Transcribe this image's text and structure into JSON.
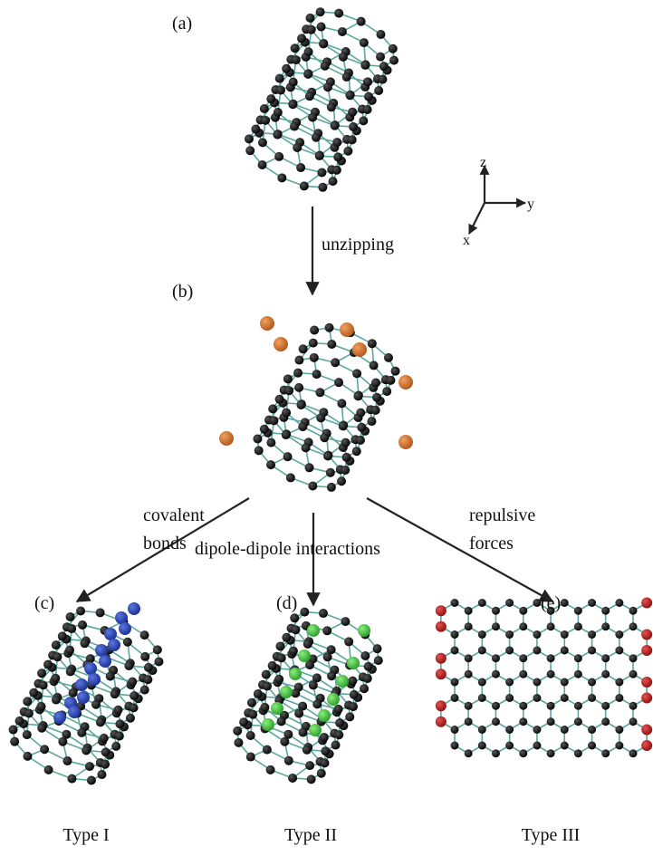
{
  "panels": [
    {
      "label": "(a)"
    },
    {
      "label": "(b)"
    },
    {
      "label": "(c)",
      "caption": "Type I"
    },
    {
      "label": "(d)",
      "caption": "Type II"
    },
    {
      "label": "(e)",
      "caption": "Type III"
    }
  ],
  "axes": {
    "z": "z",
    "y": "y",
    "x": "x"
  },
  "arrows": [
    {
      "label": [
        "unzipping"
      ]
    },
    {
      "label": [
        "covalent",
        "bonds"
      ]
    },
    {
      "label": [
        "dipole-dipole interactions"
      ]
    },
    {
      "label": [
        "repulsive",
        "forces"
      ]
    }
  ]
}
